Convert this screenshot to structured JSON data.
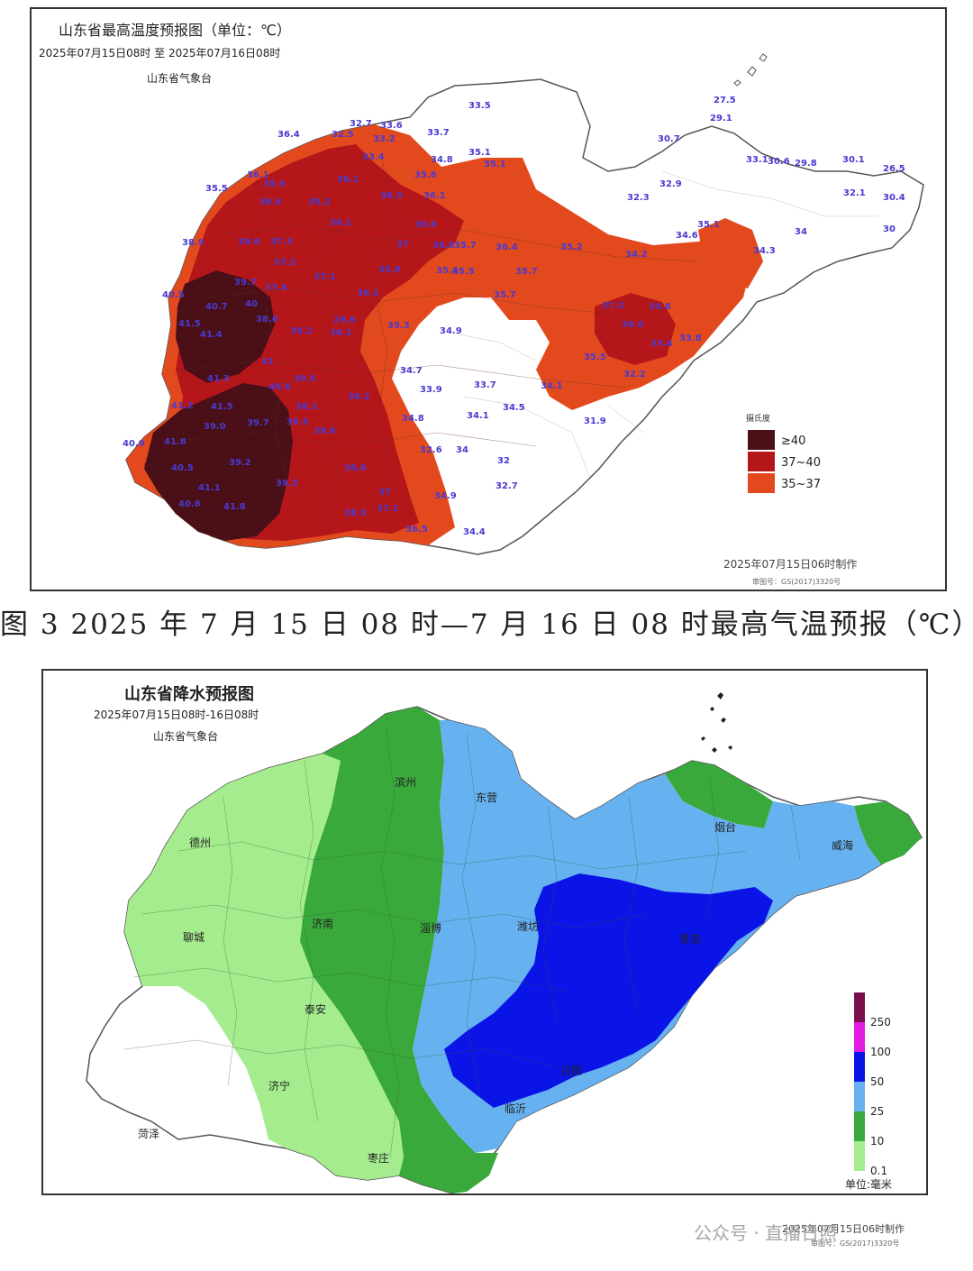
{
  "temperature_map": {
    "title": "山东省最高温度预报图（单位：℃）",
    "period": "2025年07月15日08时  至  2025年07月16日08时",
    "issuer": "山东省气象台",
    "legend_title": "摄氏度",
    "legend": [
      {
        "label": "≥40",
        "color": "#4a0f17"
      },
      {
        "label": "37~40",
        "color": "#b4161a"
      },
      {
        "label": "35~37",
        "color": "#e24a1e"
      }
    ],
    "made_time": "2025年07月15日06时制作",
    "review_no": "审图号：GS(2017)3320号",
    "values": [
      "27.5",
      "29.1",
      "30.7",
      "33.5",
      "32.7",
      "33.6",
      "32.5",
      "33.2",
      "33.7",
      "33.4",
      "34.8",
      "35.1",
      "35.1",
      "36.4",
      "35.6",
      "33.1",
      "30.6",
      "29.8",
      "30.1",
      "26.5",
      "32.9",
      "32.3",
      "32.1",
      "30.4",
      "36.1",
      "35.9",
      "36.1",
      "36.3",
      "35.5",
      "36.9",
      "35.2",
      "36.1",
      "36.6",
      "30",
      "34.6",
      "35.1",
      "34",
      "34.3",
      "38.9",
      "38.8",
      "37.3",
      "36.1",
      "37",
      "36.8",
      "35.7",
      "36.4",
      "35.2",
      "34.2",
      "37.2",
      "37.1",
      "35.9",
      "35.4",
      "35.5",
      "35.7",
      "39.7",
      "37.4",
      "36.1",
      "35.7",
      "40.5",
      "40.7",
      "40",
      "38.6",
      "29.6",
      "35.3",
      "34.9",
      "37.2",
      "34.8",
      "36.6",
      "41.5",
      "41.4",
      "38.2",
      "36.1",
      "33.8",
      "33.4",
      "35.5",
      "41",
      "34.7",
      "32.2",
      "41.3",
      "40.6",
      "39.5",
      "33.7",
      "33.9",
      "34.1",
      "41.2",
      "41.5",
      "38.1",
      "36.2",
      "34.5",
      "34.1",
      "39.7",
      "39.5",
      "34.8",
      "31.9",
      "40.9",
      "41.8",
      "39.0",
      "39.6",
      "32.6",
      "34",
      "39.2",
      "36.6",
      "32",
      "40.5",
      "41.1",
      "39.3",
      "37",
      "32.7",
      "40.6",
      "41.8",
      "38.5",
      "37.1",
      "34.9",
      "36.5",
      "34.4"
    ]
  },
  "caption": "图 3  2025 年 7 月 15 日 08 时—7 月 16 日 08 时最高气温预报（℃）",
  "rain_map": {
    "title": "山东省降水预报图",
    "period": "2025年07月15日08时-16日08时",
    "issuer": "山东省气象台",
    "cities": [
      "滨州",
      "东营",
      "德州",
      "烟台",
      "威海",
      "济南",
      "淄博",
      "潍坊",
      "聊城",
      "青岛",
      "泰安",
      "日照",
      "济宁",
      "菏泽",
      "枣庄",
      "临沂"
    ],
    "legend": [
      {
        "label": "250",
        "color": "#7a0f4e"
      },
      {
        "label": "100",
        "color": "#e21be0"
      },
      {
        "label": "50",
        "color": "#0a14e6"
      },
      {
        "label": "25",
        "color": "#66b1f0"
      },
      {
        "label": "10",
        "color": "#3aa93c"
      },
      {
        "label": "0.1",
        "color": "#a5ec8f"
      }
    ],
    "unit": "单位:毫米",
    "made_time": "2025年07月15日06时制作",
    "review_no": "审图号：GS(2017)3320号"
  },
  "watermark": "公众号 · 直播日照"
}
